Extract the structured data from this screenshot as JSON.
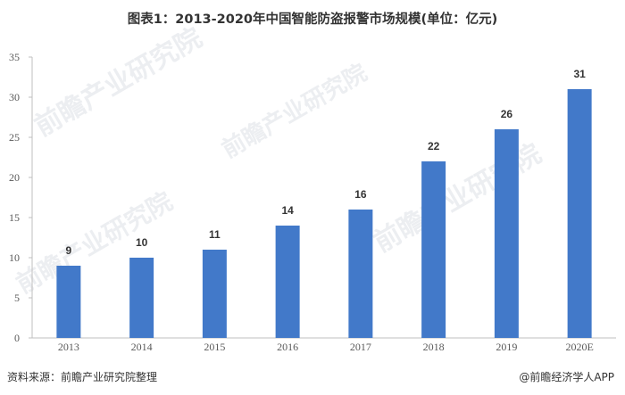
{
  "title": "图表1：2013-2020年中国智能防盗报警市场规模(单位：亿元)",
  "source": "资料来源：前瞻产业研究院整理",
  "brand": "@前瞻经济学人APP",
  "watermark": "前瞻产业研究院",
  "colors": {
    "bar": "#4279C9",
    "axis": "#BFBFBF",
    "text": "#333333"
  },
  "chart_data": {
    "type": "bar",
    "title": "图表1：2013-2020年中国智能防盗报警市场规模(单位：亿元)",
    "categories": [
      "2013",
      "2014",
      "2015",
      "2016",
      "2017",
      "2018",
      "2019",
      "2020E"
    ],
    "values": [
      9,
      10,
      11,
      14,
      16,
      22,
      26,
      31
    ],
    "value_labels": [
      "9",
      "10",
      "11",
      "14",
      "16",
      "22",
      "26",
      "31"
    ],
    "yticks": [
      "0",
      "5",
      "10",
      "15",
      "20",
      "25",
      "30",
      "35"
    ],
    "ylim": [
      0,
      35
    ],
    "xlabel": "",
    "ylabel": "",
    "grid": false,
    "legend": "none"
  }
}
